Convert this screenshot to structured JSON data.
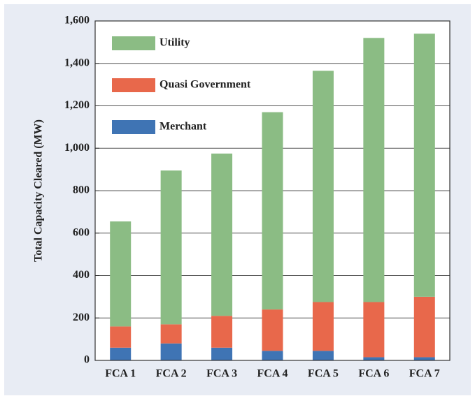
{
  "chart_data": {
    "type": "stacked_bar",
    "y_label": "Total Capacity Cleared (MW)",
    "categories": [
      "FCA 1",
      "FCA 2",
      "FCA 3",
      "FCA 4",
      "FCA 5",
      "FCA 6",
      "FCA 7"
    ],
    "series": [
      {
        "name": "Merchant",
        "color": "#3f74b4",
        "values": [
          60,
          80,
          60,
          45,
          45,
          15,
          15
        ]
      },
      {
        "name": "Quasi Government",
        "color": "#e8684b",
        "values": [
          100,
          90,
          150,
          195,
          230,
          260,
          285
        ]
      },
      {
        "name": "Utility",
        "color": "#8bbc84",
        "values": [
          495,
          725,
          765,
          930,
          1090,
          1245,
          1240
        ]
      }
    ],
    "ylim": [
      0,
      1600
    ],
    "yticks": [
      0,
      200,
      400,
      600,
      800,
      {
        "value": 1000,
        "label": "1,000"
      },
      {
        "value": 1200,
        "label": "1,200"
      },
      {
        "value": 1400,
        "label": "1,400"
      },
      {
        "value": 1600,
        "label": "1,600"
      }
    ],
    "grid": true,
    "legend": "upper-left"
  }
}
